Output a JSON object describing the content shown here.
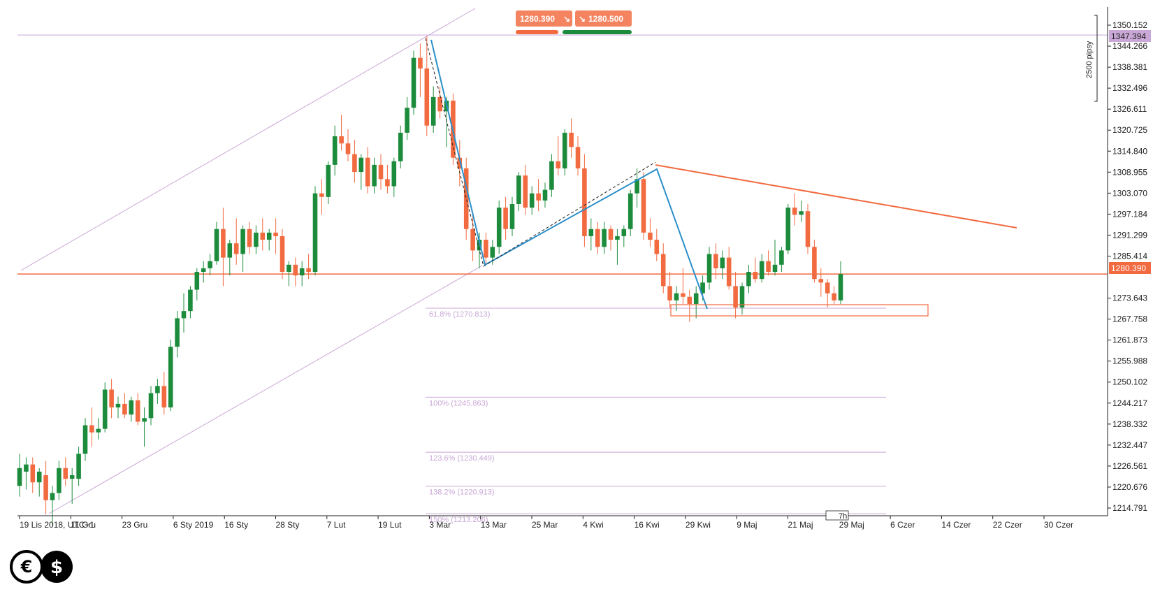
{
  "chart_data": {
    "type": "candlestick",
    "timezone_label": "UTC+1",
    "x_ticks": [
      "19 Lis 2018, UTC+1",
      "11 Gru",
      "23 Gru",
      "6 Sty 2019",
      "16 Sty",
      "28 Sty",
      "7 Lut",
      "19 Lut",
      "3 Mar",
      "13 Mar",
      "25 Mar",
      "4 Kwi",
      "16 Kwi",
      "29 Kwi",
      "9 Maj",
      "21 Maj",
      "29 Maj",
      "6 Czer",
      "14 Czer",
      "22 Czer",
      "30 Czer"
    ],
    "y_ticks": [
      "1350.152",
      "1344.266",
      "1338.381",
      "1332.496",
      "1326.611",
      "1320.725",
      "1314.840",
      "1308.955",
      "1303.070",
      "1297.184",
      "1291.299",
      "1285.414",
      "1273.643",
      "1267.758",
      "1261.873",
      "1255.988",
      "1250.102",
      "1244.217",
      "1238.332",
      "1232.447",
      "1226.561",
      "1220.676",
      "1214.791"
    ],
    "ylim": [
      1210,
      1354
    ],
    "current_price": "1280.390",
    "upper_level": "1347.394",
    "bid": "1280.390",
    "ask": "1280.500",
    "pips_label": "2500 pipsy",
    "timeframe_marker": "7h",
    "colors": {
      "up": "#1c8c3c",
      "down": "#f26a3f",
      "fib": "#c9a7d6",
      "trend": "#f26a3f",
      "wave": "#2b8fc9",
      "channel": "#c9a7d6"
    },
    "fib_levels": [
      {
        "label": "61.8% (1270.813)",
        "value": 1270.813
      },
      {
        "label": "100% (1245.863)",
        "value": 1245.863
      },
      {
        "label": "123.6% (1230.449)",
        "value": 1230.449
      },
      {
        "label": "138.2% (1220.913)",
        "value": 1220.913
      },
      {
        "label": "150% (1213.206)",
        "value": 1213.206
      }
    ],
    "candles": [
      {
        "o": 1221,
        "h": 1230,
        "l": 1218,
        "c": 1226
      },
      {
        "o": 1225,
        "h": 1229,
        "l": 1220,
        "c": 1227
      },
      {
        "o": 1227,
        "h": 1229,
        "l": 1219,
        "c": 1222
      },
      {
        "o": 1222,
        "h": 1226,
        "l": 1218,
        "c": 1225
      },
      {
        "o": 1224,
        "h": 1228,
        "l": 1213,
        "c": 1217
      },
      {
        "o": 1217,
        "h": 1221,
        "l": 1210,
        "c": 1219
      },
      {
        "o": 1219,
        "h": 1228,
        "l": 1217,
        "c": 1226
      },
      {
        "o": 1226,
        "h": 1229,
        "l": 1221,
        "c": 1223
      },
      {
        "o": 1223,
        "h": 1226,
        "l": 1216,
        "c": 1224
      },
      {
        "o": 1223,
        "h": 1232,
        "l": 1221,
        "c": 1230
      },
      {
        "o": 1230,
        "h": 1240,
        "l": 1228,
        "c": 1238
      },
      {
        "o": 1238,
        "h": 1243,
        "l": 1232,
        "c": 1236
      },
      {
        "o": 1236,
        "h": 1240,
        "l": 1234,
        "c": 1237
      },
      {
        "o": 1237,
        "h": 1250,
        "l": 1236,
        "c": 1248
      },
      {
        "o": 1248,
        "h": 1251,
        "l": 1240,
        "c": 1243
      },
      {
        "o": 1243,
        "h": 1246,
        "l": 1240,
        "c": 1244
      },
      {
        "o": 1244,
        "h": 1247,
        "l": 1240,
        "c": 1241
      },
      {
        "o": 1241,
        "h": 1246,
        "l": 1239,
        "c": 1245
      },
      {
        "o": 1245,
        "h": 1247,
        "l": 1238,
        "c": 1239
      },
      {
        "o": 1239,
        "h": 1243,
        "l": 1232,
        "c": 1240
      },
      {
        "o": 1240,
        "h": 1249,
        "l": 1238,
        "c": 1247
      },
      {
        "o": 1247,
        "h": 1251,
        "l": 1244,
        "c": 1249
      },
      {
        "o": 1249,
        "h": 1253,
        "l": 1241,
        "c": 1243
      },
      {
        "o": 1243,
        "h": 1262,
        "l": 1242,
        "c": 1260
      },
      {
        "o": 1260,
        "h": 1270,
        "l": 1257,
        "c": 1268
      },
      {
        "o": 1268,
        "h": 1275,
        "l": 1264,
        "c": 1270
      },
      {
        "o": 1270,
        "h": 1277,
        "l": 1268,
        "c": 1276
      },
      {
        "o": 1276,
        "h": 1282,
        "l": 1273,
        "c": 1281
      },
      {
        "o": 1281,
        "h": 1284,
        "l": 1278,
        "c": 1282
      },
      {
        "o": 1282,
        "h": 1286,
        "l": 1280,
        "c": 1284
      },
      {
        "o": 1284,
        "h": 1295,
        "l": 1283,
        "c": 1293
      },
      {
        "o": 1293,
        "h": 1299,
        "l": 1277,
        "c": 1285
      },
      {
        "o": 1285,
        "h": 1290,
        "l": 1280,
        "c": 1289
      },
      {
        "o": 1289,
        "h": 1296,
        "l": 1283,
        "c": 1286
      },
      {
        "o": 1286,
        "h": 1294,
        "l": 1281,
        "c": 1293
      },
      {
        "o": 1293,
        "h": 1295,
        "l": 1286,
        "c": 1288
      },
      {
        "o": 1288,
        "h": 1294,
        "l": 1286,
        "c": 1292
      },
      {
        "o": 1292,
        "h": 1296,
        "l": 1287,
        "c": 1290
      },
      {
        "o": 1290,
        "h": 1293,
        "l": 1287,
        "c": 1292
      },
      {
        "o": 1292,
        "h": 1296,
        "l": 1286,
        "c": 1291
      },
      {
        "o": 1291,
        "h": 1293,
        "l": 1279,
        "c": 1281
      },
      {
        "o": 1281,
        "h": 1284,
        "l": 1277,
        "c": 1283
      },
      {
        "o": 1283,
        "h": 1285,
        "l": 1277,
        "c": 1280
      },
      {
        "o": 1280,
        "h": 1284,
        "l": 1277,
        "c": 1282
      },
      {
        "o": 1282,
        "h": 1286,
        "l": 1279,
        "c": 1281
      },
      {
        "o": 1281,
        "h": 1305,
        "l": 1280,
        "c": 1303
      },
      {
        "o": 1303,
        "h": 1307,
        "l": 1297,
        "c": 1302
      },
      {
        "o": 1302,
        "h": 1312,
        "l": 1300,
        "c": 1311
      },
      {
        "o": 1311,
        "h": 1322,
        "l": 1308,
        "c": 1319
      },
      {
        "o": 1319,
        "h": 1325,
        "l": 1315,
        "c": 1317
      },
      {
        "o": 1317,
        "h": 1321,
        "l": 1312,
        "c": 1314
      },
      {
        "o": 1314,
        "h": 1318,
        "l": 1306,
        "c": 1309
      },
      {
        "o": 1309,
        "h": 1314,
        "l": 1304,
        "c": 1313
      },
      {
        "o": 1313,
        "h": 1316,
        "l": 1303,
        "c": 1305
      },
      {
        "o": 1305,
        "h": 1313,
        "l": 1303,
        "c": 1311
      },
      {
        "o": 1311,
        "h": 1314,
        "l": 1304,
        "c": 1307
      },
      {
        "o": 1307,
        "h": 1311,
        "l": 1303,
        "c": 1305
      },
      {
        "o": 1305,
        "h": 1313,
        "l": 1302,
        "c": 1312
      },
      {
        "o": 1312,
        "h": 1322,
        "l": 1310,
        "c": 1320
      },
      {
        "o": 1320,
        "h": 1330,
        "l": 1318,
        "c": 1327
      },
      {
        "o": 1327,
        "h": 1343,
        "l": 1325,
        "c": 1341
      },
      {
        "o": 1341,
        "h": 1345,
        "l": 1330,
        "c": 1338
      },
      {
        "o": 1338,
        "h": 1347,
        "l": 1319,
        "c": 1322
      },
      {
        "o": 1322,
        "h": 1333,
        "l": 1320,
        "c": 1330
      },
      {
        "o": 1330,
        "h": 1333,
        "l": 1324,
        "c": 1326
      },
      {
        "o": 1326,
        "h": 1330,
        "l": 1316,
        "c": 1329
      },
      {
        "o": 1329,
        "h": 1331,
        "l": 1311,
        "c": 1313
      },
      {
        "o": 1313,
        "h": 1318,
        "l": 1305,
        "c": 1310
      },
      {
        "o": 1310,
        "h": 1313,
        "l": 1290,
        "c": 1293
      },
      {
        "o": 1293,
        "h": 1297,
        "l": 1284,
        "c": 1287
      },
      {
        "o": 1287,
        "h": 1292,
        "l": 1282,
        "c": 1290
      },
      {
        "o": 1290,
        "h": 1292,
        "l": 1283,
        "c": 1285
      },
      {
        "o": 1285,
        "h": 1290,
        "l": 1283,
        "c": 1288
      },
      {
        "o": 1288,
        "h": 1301,
        "l": 1286,
        "c": 1299
      },
      {
        "o": 1299,
        "h": 1302,
        "l": 1290,
        "c": 1293
      },
      {
        "o": 1293,
        "h": 1302,
        "l": 1291,
        "c": 1300
      },
      {
        "o": 1300,
        "h": 1309,
        "l": 1298,
        "c": 1308
      },
      {
        "o": 1308,
        "h": 1311,
        "l": 1297,
        "c": 1299
      },
      {
        "o": 1299,
        "h": 1305,
        "l": 1297,
        "c": 1303
      },
      {
        "o": 1303,
        "h": 1307,
        "l": 1298,
        "c": 1301
      },
      {
        "o": 1301,
        "h": 1306,
        "l": 1299,
        "c": 1304
      },
      {
        "o": 1304,
        "h": 1314,
        "l": 1302,
        "c": 1312
      },
      {
        "o": 1312,
        "h": 1319,
        "l": 1308,
        "c": 1310
      },
      {
        "o": 1310,
        "h": 1321,
        "l": 1308,
        "c": 1320
      },
      {
        "o": 1320,
        "h": 1324,
        "l": 1313,
        "c": 1316
      },
      {
        "o": 1316,
        "h": 1319,
        "l": 1308,
        "c": 1310
      },
      {
        "o": 1310,
        "h": 1314,
        "l": 1288,
        "c": 1291
      },
      {
        "o": 1291,
        "h": 1296,
        "l": 1287,
        "c": 1293
      },
      {
        "o": 1293,
        "h": 1295,
        "l": 1286,
        "c": 1288
      },
      {
        "o": 1288,
        "h": 1295,
        "l": 1286,
        "c": 1293
      },
      {
        "o": 1293,
        "h": 1294,
        "l": 1287,
        "c": 1290
      },
      {
        "o": 1290,
        "h": 1293,
        "l": 1283,
        "c": 1291
      },
      {
        "o": 1291,
        "h": 1294,
        "l": 1288,
        "c": 1293
      },
      {
        "o": 1293,
        "h": 1304,
        "l": 1291,
        "c": 1303
      },
      {
        "o": 1303,
        "h": 1310,
        "l": 1299,
        "c": 1307
      },
      {
        "o": 1307,
        "h": 1309,
        "l": 1290,
        "c": 1292
      },
      {
        "o": 1292,
        "h": 1296,
        "l": 1288,
        "c": 1290
      },
      {
        "o": 1290,
        "h": 1293,
        "l": 1284,
        "c": 1286
      },
      {
        "o": 1286,
        "h": 1289,
        "l": 1275,
        "c": 1277
      },
      {
        "o": 1277,
        "h": 1281,
        "l": 1271,
        "c": 1273
      },
      {
        "o": 1273,
        "h": 1277,
        "l": 1270,
        "c": 1275
      },
      {
        "o": 1275,
        "h": 1282,
        "l": 1272,
        "c": 1274
      },
      {
        "o": 1274,
        "h": 1276,
        "l": 1267,
        "c": 1272
      },
      {
        "o": 1272,
        "h": 1277,
        "l": 1268,
        "c": 1275
      },
      {
        "o": 1275,
        "h": 1280,
        "l": 1273,
        "c": 1278
      },
      {
        "o": 1278,
        "h": 1288,
        "l": 1276,
        "c": 1286
      },
      {
        "o": 1286,
        "h": 1289,
        "l": 1279,
        "c": 1282
      },
      {
        "o": 1282,
        "h": 1287,
        "l": 1279,
        "c": 1285
      },
      {
        "o": 1285,
        "h": 1288,
        "l": 1276,
        "c": 1277
      },
      {
        "o": 1277,
        "h": 1281,
        "l": 1268,
        "c": 1271
      },
      {
        "o": 1271,
        "h": 1278,
        "l": 1269,
        "c": 1277
      },
      {
        "o": 1277,
        "h": 1283,
        "l": 1275,
        "c": 1281
      },
      {
        "o": 1281,
        "h": 1285,
        "l": 1278,
        "c": 1279
      },
      {
        "o": 1279,
        "h": 1286,
        "l": 1278,
        "c": 1284
      },
      {
        "o": 1284,
        "h": 1287,
        "l": 1280,
        "c": 1281
      },
      {
        "o": 1281,
        "h": 1290,
        "l": 1280,
        "c": 1283
      },
      {
        "o": 1283,
        "h": 1288,
        "l": 1281,
        "c": 1287
      },
      {
        "o": 1287,
        "h": 1300,
        "l": 1286,
        "c": 1299
      },
      {
        "o": 1299,
        "h": 1303,
        "l": 1294,
        "c": 1297
      },
      {
        "o": 1297,
        "h": 1301,
        "l": 1295,
        "c": 1298
      },
      {
        "o": 1298,
        "h": 1300,
        "l": 1286,
        "c": 1288
      },
      {
        "o": 1288,
        "h": 1290,
        "l": 1278,
        "c": 1279
      },
      {
        "o": 1279,
        "h": 1282,
        "l": 1274,
        "c": 1278
      },
      {
        "o": 1278,
        "h": 1279,
        "l": 1271,
        "c": 1275
      },
      {
        "o": 1275,
        "h": 1277,
        "l": 1272,
        "c": 1273
      },
      {
        "o": 1273,
        "h": 1284,
        "l": 1272,
        "c": 1280.39
      }
    ]
  }
}
